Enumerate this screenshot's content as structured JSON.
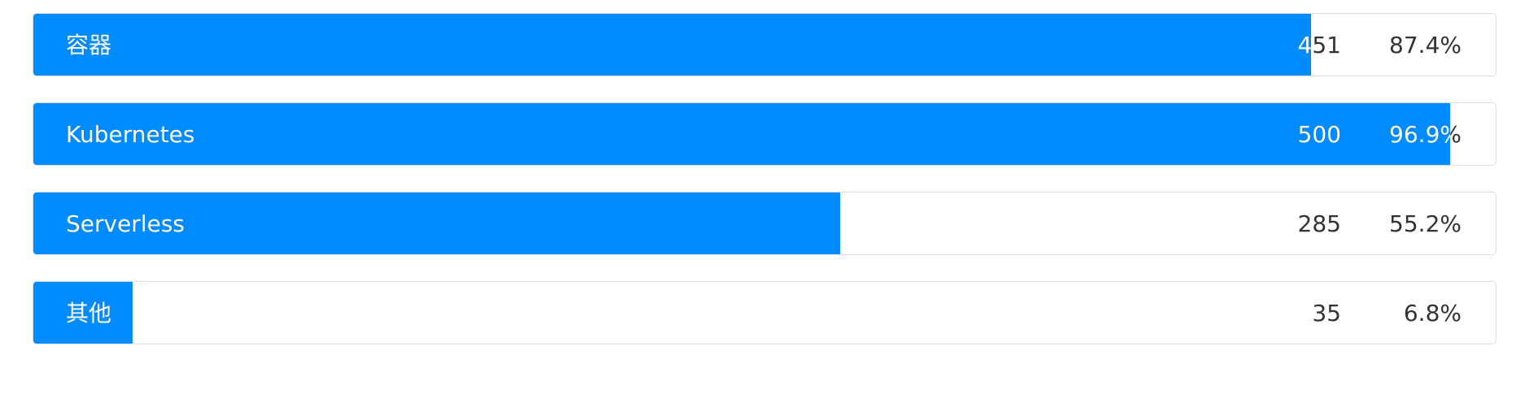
{
  "chart_data": {
    "type": "bar",
    "orientation": "horizontal",
    "categories": [
      "容器",
      "Kubernetes",
      "Serverless",
      "其他"
    ],
    "values": [
      451,
      500,
      285,
      35
    ],
    "percentages": [
      "87.4%",
      "96.9%",
      "55.2%",
      "6.8%"
    ],
    "percent_values": [
      87.4,
      96.9,
      55.2,
      6.8
    ],
    "bar_color": "#008cff",
    "track_border_color": "#dcdfe6",
    "grid": false,
    "legend": "none"
  }
}
